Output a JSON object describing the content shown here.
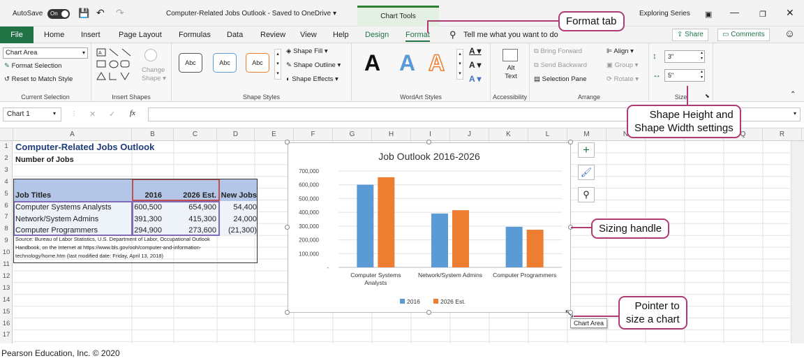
{
  "titlebar": {
    "autosave": "AutoSave",
    "toggle": "On",
    "doc_title": "Computer-Related Jobs Outlook  -  Saved to OneDrive ▾",
    "chart_tools": "Chart Tools",
    "exploring": "Exploring Series"
  },
  "tabs": [
    "File",
    "Home",
    "Insert",
    "Page Layout",
    "Formulas",
    "Data",
    "Review",
    "View",
    "Help",
    "Design",
    "Format"
  ],
  "tell_me": "Tell me what you want to do",
  "share": "Share",
  "comments": "Comments",
  "ribbon": {
    "current_selection": {
      "dropdown": "Chart Area",
      "format_selection": "Format Selection",
      "reset": "Reset to Match Style",
      "label": "Current Selection"
    },
    "insert_shapes": {
      "change_shape": "Change Shape ▾",
      "label": "Insert Shapes"
    },
    "shape_styles": {
      "abc": "Abc",
      "fill": "Shape Fill ▾",
      "outline": "Shape Outline ▾",
      "effects": "Shape Effects ▾",
      "label": "Shape Styles"
    },
    "wordart": {
      "glyph": "A",
      "label": "WordArt Styles"
    },
    "accessibility": {
      "alt_text": "Alt Text",
      "label": "Accessibility"
    },
    "arrange": {
      "bring_forward": "Bring Forward",
      "send_backward": "Send Backward",
      "selection_pane": "Selection Pane",
      "align": "Align ▾",
      "group": "Group ▾",
      "rotate": "Rotate ▾",
      "label": "Arrange"
    },
    "size": {
      "height": "3\"",
      "width": "5\"",
      "label": "Size"
    }
  },
  "formula_bar": {
    "name_box": "Chart 1",
    "cancel": "✕",
    "enter": "✓",
    "fx": "fx"
  },
  "columns": [
    "A",
    "B",
    "C",
    "D",
    "E",
    "F",
    "G",
    "H",
    "I",
    "J",
    "K",
    "L",
    "M",
    "N",
    "O",
    "P",
    "Q",
    "R"
  ],
  "rows": [
    "1",
    "2",
    "3",
    "4",
    "5",
    "6",
    "7",
    "8",
    "9",
    "10",
    "11",
    "12",
    "13",
    "14",
    "15",
    "16",
    "17"
  ],
  "sheet": {
    "title": "Computer-Related Jobs Outlook",
    "subtitle": "Number of Jobs",
    "headers": [
      "Job Titles",
      "2016",
      "2026 Est.",
      "New Jobs"
    ],
    "table": [
      [
        "Computer Systems Analysts",
        "600,500",
        "654,900",
        "54,400"
      ],
      [
        "Network/System Admins",
        "391,300",
        "415,300",
        "24,000"
      ],
      [
        "Computer Programmers",
        "294,900",
        "273,600",
        "(21,300)"
      ]
    ],
    "source_line1": "Source: Bureau of Labor Statistics, U.S. Department of Labor, Occupational Outlook",
    "source_line2": "Handbook,  on the Internet at https://www.bls.gov/ooh/computer-and-information-",
    "source_line3": "technology/home.htm (last modified date: Friday, April 13, 2018)"
  },
  "chart_data": {
    "type": "bar",
    "title": "Job Outlook 2016-2026",
    "categories": [
      "Computer Systems Analysts",
      "Network/System Admins",
      "Computer Programmers"
    ],
    "category_lines": [
      [
        "Computer Systems",
        "Analysts"
      ],
      [
        "Network/System Admins"
      ],
      [
        "Computer Programmers"
      ]
    ],
    "series": [
      {
        "name": "2016",
        "values": [
          600500,
          391300,
          294900
        ],
        "color": "#5b9bd5"
      },
      {
        "name": "2026 Est.",
        "values": [
          654900,
          415300,
          273600
        ],
        "color": "#ed7d31"
      }
    ],
    "y_ticks": [
      "-",
      "100,000",
      "200,000",
      "300,000",
      "400,000",
      "500,000",
      "600,000",
      "700,000"
    ],
    "ylim": [
      0,
      700000
    ],
    "grid": true,
    "legend": "bottom"
  },
  "tooltip": "Chart Area",
  "callouts": {
    "format_tab": "Format tab",
    "shape_size": [
      "Shape Height and",
      "Shape Width settings"
    ],
    "sizing_handle": "Sizing handle",
    "pointer": [
      "Pointer to",
      "size a chart"
    ]
  },
  "footer": "Pearson Education, Inc. © 2020",
  "colors": {
    "excel_green": "#217346",
    "callout": "#b03a73",
    "selection_red": "#c0504d"
  }
}
